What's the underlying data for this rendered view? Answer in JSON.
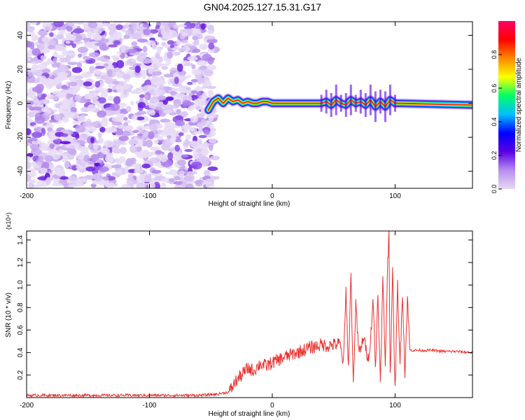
{
  "title": "GN04.2025.127.15.31.G17",
  "chart_data": [
    {
      "type": "heatmap",
      "xlabel": "Height of straight line (km)",
      "ylabel": "Frequency (Hz)",
      "xlim": [
        -200,
        163
      ],
      "ylim": [
        -50,
        48
      ],
      "xticks": [
        -200,
        -100,
        0,
        100
      ],
      "yticks": [
        -40,
        -20,
        0,
        20,
        40
      ],
      "noise_region_x": [
        -200,
        -50
      ],
      "ridge_points": [
        {
          "x": -52,
          "y": -4
        },
        {
          "x": -48,
          "y": 1
        },
        {
          "x": -44,
          "y": 3
        },
        {
          "x": -40,
          "y": 0
        },
        {
          "x": -36,
          "y": 3
        },
        {
          "x": -32,
          "y": 1
        },
        {
          "x": -28,
          "y": 2
        },
        {
          "x": -24,
          "y": 0
        },
        {
          "x": -20,
          "y": 1
        },
        {
          "x": -16,
          "y": 0
        },
        {
          "x": -12,
          "y": 0
        },
        {
          "x": -8,
          "y": 1
        },
        {
          "x": -4,
          "y": 1
        },
        {
          "x": 0,
          "y": 0
        },
        {
          "x": 4,
          "y": 0
        },
        {
          "x": 20,
          "y": 0
        },
        {
          "x": 40,
          "y": 0
        },
        {
          "x": 44,
          "y": 1
        },
        {
          "x": 48,
          "y": -1
        },
        {
          "x": 52,
          "y": 2
        },
        {
          "x": 56,
          "y": 0
        },
        {
          "x": 60,
          "y": -1
        },
        {
          "x": 64,
          "y": 2
        },
        {
          "x": 68,
          "y": 0
        },
        {
          "x": 72,
          "y": 1
        },
        {
          "x": 76,
          "y": -1
        },
        {
          "x": 80,
          "y": 2
        },
        {
          "x": 84,
          "y": -2
        },
        {
          "x": 88,
          "y": 1
        },
        {
          "x": 92,
          "y": -2
        },
        {
          "x": 96,
          "y": 2
        },
        {
          "x": 100,
          "y": 0
        },
        {
          "x": 104,
          "y": 0
        },
        {
          "x": 163,
          "y": -1
        }
      ],
      "colorbar": {
        "label": "Normalized spectral amplitude",
        "range": [
          0,
          1
        ],
        "ticks": [
          "0.0",
          "0.2",
          "0.4",
          "0.6",
          "0.8"
        ],
        "colors": [
          "#e6d8f5",
          "#b78ff0",
          "#5a00e6",
          "#0000ff",
          "#00bfff",
          "#00ff66",
          "#ffff00",
          "#ff8800",
          "#ff0000",
          "#ff0066"
        ]
      }
    },
    {
      "type": "line",
      "xlabel": "Height of straight line (km)",
      "ylabel": "SNR (10 * v/v)",
      "y_multiplier": "(x10⁴)",
      "xlim": [
        -200,
        163
      ],
      "ylim": [
        0,
        1.48
      ],
      "xticks": [
        -200,
        -100,
        0,
        100
      ],
      "yticks": [
        "0.2",
        "0.4",
        "0.6",
        "0.8",
        "1.0",
        "1.2",
        "1.4"
      ],
      "color": "#e8322e",
      "series": [
        {
          "x": [
            -200,
            -180,
            -160,
            -140,
            -120,
            -100,
            -80,
            -60,
            -45,
            -35,
            -30,
            -25,
            -20,
            -15,
            -10,
            -5,
            0,
            10,
            20,
            30,
            40,
            45,
            50,
            55,
            58,
            60,
            62,
            64,
            66,
            68,
            70,
            72,
            74,
            76,
            78,
            80,
            82,
            84,
            86,
            88,
            90,
            92,
            94,
            95,
            96,
            98,
            100,
            102,
            104,
            106,
            108,
            110,
            112,
            120,
            130,
            140,
            150,
            163
          ],
          "y": [
            0.02,
            0.02,
            0.02,
            0.02,
            0.02,
            0.02,
            0.02,
            0.02,
            0.03,
            0.05,
            0.14,
            0.2,
            0.26,
            0.24,
            0.3,
            0.28,
            0.31,
            0.36,
            0.4,
            0.44,
            0.47,
            0.46,
            0.47,
            0.48,
            0.3,
            0.95,
            0.25,
            1.1,
            0.1,
            0.85,
            0.45,
            0.4,
            0.55,
            0.45,
            0.35,
            0.5,
            0.9,
            0.25,
            0.95,
            0.1,
            1.05,
            0.3,
            1.2,
            1.48,
            0.2,
            1.1,
            0.05,
            1.0,
            0.3,
            0.95,
            0.2,
            0.9,
            0.42,
            0.42,
            0.42,
            0.41,
            0.41,
            0.4
          ]
        }
      ]
    }
  ]
}
